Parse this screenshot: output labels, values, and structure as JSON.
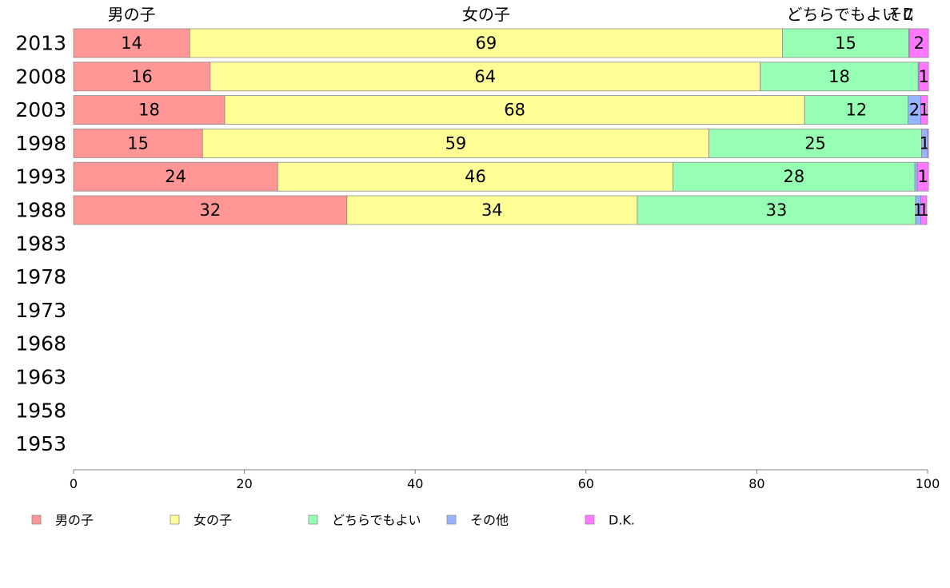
{
  "chart_data": {
    "type": "bar",
    "orientation": "horizontal",
    "stacked": true,
    "categories": [
      "2013",
      "2008",
      "2003",
      "1998",
      "1993",
      "1988",
      "1983",
      "1978",
      "1973",
      "1968",
      "1963",
      "1958",
      "1953"
    ],
    "series": [
      {
        "name": "男の子",
        "color": "#ff9696",
        "values": [
          13.6,
          16.0,
          17.7,
          15.1,
          23.9,
          32.0,
          null,
          null,
          null,
          null,
          null,
          null,
          null
        ],
        "labels": [
          "14",
          "16",
          "18",
          "15",
          "24",
          "32",
          "",
          "",
          "",
          "",
          "",
          "",
          ""
        ]
      },
      {
        "name": "女の子",
        "color": "#ffff96",
        "values": [
          69.4,
          64.4,
          67.9,
          59.3,
          46.3,
          34.0,
          null,
          null,
          null,
          null,
          null,
          null,
          null
        ],
        "labels": [
          "69",
          "64",
          "68",
          "59",
          "46",
          "34",
          "",
          "",
          "",
          "",
          "",
          "",
          ""
        ]
      },
      {
        "name": "どちらでもよい",
        "color": "#96ffb4",
        "values": [
          14.8,
          18.5,
          12.1,
          24.9,
          28.3,
          32.6,
          null,
          null,
          null,
          null,
          null,
          null,
          null
        ],
        "labels": [
          "15",
          "18",
          "12",
          "25",
          "28",
          "33",
          "",
          "",
          "",
          "",
          "",
          "",
          ""
        ]
      },
      {
        "name": "その他",
        "color": "#96b4ff",
        "values": [
          0.1,
          0.1,
          1.5,
          0.7,
          0.3,
          0.6,
          null,
          null,
          null,
          null,
          null,
          null,
          null
        ],
        "labels": [
          "",
          "",
          "2",
          "1",
          "",
          "1",
          "",
          "",
          "",
          "",
          "",
          "",
          ""
        ]
      },
      {
        "name": "D.K.",
        "color": "#ff78ff",
        "values": [
          2.2,
          1.1,
          0.8,
          0.1,
          1.3,
          0.7,
          null,
          null,
          null,
          null,
          null,
          null,
          null
        ],
        "labels": [
          "2",
          "1",
          "1",
          "",
          "1",
          "1",
          "",
          "",
          "",
          "",
          "",
          "",
          ""
        ]
      }
    ],
    "top_labels": [
      {
        "text": "男の子",
        "at": 6.8
      },
      {
        "text": "女の子",
        "at": 48.3
      },
      {
        "text": "どちらでもよい",
        "at": 90.0
      },
      {
        "text": "その他",
        "at": 98.0
      },
      {
        "text": "D.K.",
        "at": 99.0
      }
    ],
    "xlim": [
      0,
      100
    ],
    "xticks": [
      0,
      20,
      40,
      60,
      80,
      100
    ],
    "legend_position": "bottom",
    "grid": false
  }
}
